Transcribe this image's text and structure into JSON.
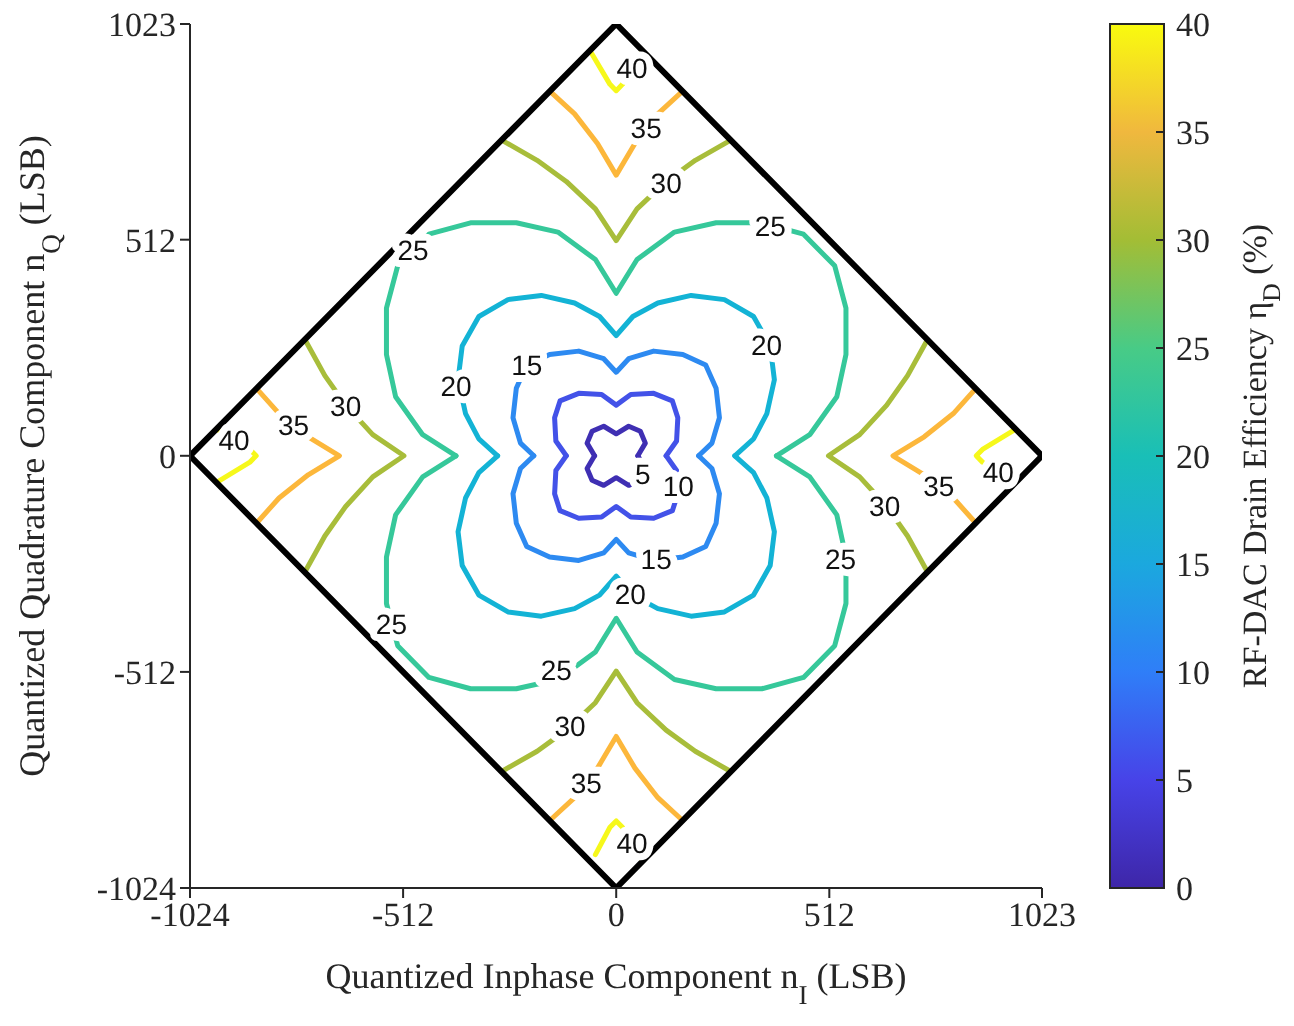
{
  "chart_data": {
    "type": "line",
    "xlabel": "Quantized Inphase Component n$_{I}$ (LSB)",
    "ylabel": "Quantized Quadrature Component n$_{Q}$ (LSB)",
    "clabel": "RF-DAC Drain Efficiency η$_{D}$ (%)",
    "xlim": [
      -1024,
      1023
    ],
    "ylim": [
      -1024,
      1023
    ],
    "xticks": [
      -1024,
      -512,
      0,
      512,
      1023
    ],
    "yticks": [
      -1024,
      -512,
      0,
      512,
      1023
    ],
    "clim": [
      0,
      40
    ],
    "cticks": [
      0,
      5,
      10,
      15,
      20,
      25,
      30,
      35,
      40
    ],
    "series": [
      {
        "color": "#3f2fb3",
        "x": [
          -52,
          -70,
          -58,
          -30,
          0,
          30,
          58,
          70,
          52
        ],
        "values": [
          0,
          30,
          58,
          70,
          52,
          70,
          58,
          30,
          0
        ]
      },
      {
        "color": "#3f2fb3",
        "x": [
          52,
          70,
          58,
          30,
          0,
          -30,
          -58,
          -70,
          -52
        ],
        "values": [
          0,
          -30,
          -58,
          -70,
          -52,
          -70,
          -58,
          -30,
          0
        ]
      },
      {
        "color": "#4352e8",
        "x": [
          -120,
          -145,
          -148,
          -135,
          -90,
          -35,
          0,
          35,
          90,
          135,
          148,
          145,
          120
        ],
        "values": [
          0,
          35,
          90,
          130,
          148,
          145,
          120,
          145,
          148,
          130,
          90,
          35,
          0
        ]
      },
      {
        "color": "#4352e8",
        "x": [
          120,
          145,
          148,
          135,
          90,
          35,
          0,
          -35,
          -90,
          -135,
          -148,
          -145,
          -120
        ],
        "values": [
          0,
          -35,
          -90,
          -130,
          -148,
          -145,
          -120,
          -145,
          -148,
          -130,
          -90,
          -35,
          0
        ]
      },
      {
        "color": "#2d8af1",
        "x": [
          -198,
          -230,
          -248,
          -240,
          -215,
          -160,
          -90,
          -30,
          0,
          30,
          90,
          160,
          215,
          240,
          248,
          230,
          198
        ],
        "values": [
          0,
          30,
          90,
          160,
          215,
          240,
          248,
          230,
          198,
          230,
          248,
          240,
          215,
          160,
          90,
          30,
          0
        ]
      },
      {
        "color": "#2d8af1",
        "x": [
          198,
          230,
          248,
          240,
          215,
          160,
          90,
          30,
          0,
          -30,
          -90,
          -160,
          -215,
          -240,
          -248,
          -230,
          -198
        ],
        "values": [
          0,
          -30,
          -90,
          -160,
          -215,
          -240,
          -248,
          -230,
          -198,
          -230,
          -248,
          -240,
          -215,
          -160,
          -90,
          -30,
          0
        ]
      },
      {
        "color": "#13b3d5",
        "x": [
          -285,
          -330,
          -362,
          -380,
          -370,
          -330,
          -260,
          -180,
          -100,
          -40,
          0,
          40,
          100,
          180,
          260,
          330,
          370,
          380,
          362,
          330,
          285
        ],
        "values": [
          0,
          40,
          100,
          180,
          260,
          330,
          370,
          380,
          362,
          330,
          285,
          330,
          362,
          380,
          370,
          330,
          260,
          180,
          100,
          40,
          0
        ]
      },
      {
        "color": "#13b3d5",
        "x": [
          285,
          330,
          362,
          380,
          370,
          330,
          260,
          180,
          100,
          40,
          0,
          -40,
          -100,
          -180,
          -260,
          -330,
          -370,
          -380,
          -362,
          -330,
          -285
        ],
        "values": [
          0,
          -40,
          -100,
          -180,
          -260,
          -330,
          -370,
          -380,
          -362,
          -330,
          -285,
          -330,
          -362,
          -380,
          -370,
          -330,
          -260,
          -180,
          -100,
          -40,
          0
        ]
      },
      {
        "color": "#36c89a",
        "x": [
          -385,
          -465,
          -530,
          -552,
          -552,
          -525,
          -450,
          -350,
          -240,
          -140,
          -50,
          0,
          50,
          140,
          240,
          350,
          450,
          525,
          552,
          552,
          530,
          465,
          385
        ],
        "values": [
          0,
          50,
          140,
          240,
          350,
          450,
          525,
          552,
          552,
          530,
          465,
          385,
          465,
          530,
          552,
          552,
          525,
          450,
          350,
          240,
          140,
          50,
          0
        ]
      },
      {
        "color": "#36c89a",
        "x": [
          385,
          465,
          530,
          552,
          552,
          525,
          450,
          350,
          240,
          140,
          50,
          0,
          -50,
          -140,
          -240,
          -350,
          -450,
          -525,
          -552,
          -552,
          -530,
          -465,
          -385
        ],
        "values": [
          0,
          -50,
          -140,
          -240,
          -350,
          -450,
          -525,
          -552,
          -552,
          -530,
          -465,
          -385,
          -465,
          -530,
          -552,
          -552,
          -525,
          -450,
          -350,
          -240,
          -140,
          -50,
          0
        ]
      },
      {
        "color": "#a8bd3a",
        "x": [
          -270,
          -190,
          -120,
          -50,
          0,
          50,
          120,
          190,
          270
        ],
        "values": [
          745,
          700,
          650,
          585,
          510,
          585,
          650,
          700,
          745
        ]
      },
      {
        "color": "#a8bd3a",
        "x": [
          745,
          700,
          650,
          585,
          510,
          585,
          650,
          700,
          745
        ],
        "values": [
          270,
          190,
          120,
          50,
          0,
          -50,
          -120,
          -190,
          -270
        ]
      },
      {
        "color": "#a8bd3a",
        "x": [
          -270,
          -190,
          -120,
          -50,
          0,
          50,
          120,
          190,
          270
        ],
        "values": [
          -745,
          -700,
          -650,
          -585,
          -510,
          -585,
          -650,
          -700,
          -745
        ]
      },
      {
        "color": "#a8bd3a",
        "x": [
          -745,
          -700,
          -650,
          -585,
          -510,
          -585,
          -650,
          -700,
          -745
        ],
        "values": [
          270,
          190,
          120,
          50,
          0,
          -50,
          -120,
          -190,
          -270
        ]
      },
      {
        "color": "#fcb73b",
        "x": [
          -155,
          -100,
          -45,
          0,
          45,
          100,
          155
        ],
        "values": [
          860,
          810,
          740,
          665,
          740,
          810,
          860
        ]
      },
      {
        "color": "#fcb73b",
        "x": [
          860,
          810,
          740,
          665,
          740,
          810,
          860
        ],
        "values": [
          155,
          100,
          45,
          0,
          -45,
          -100,
          -155
        ]
      },
      {
        "color": "#fcb73b",
        "x": [
          -155,
          -100,
          -45,
          0,
          45,
          100,
          155
        ],
        "values": [
          -860,
          -810,
          -740,
          -665,
          -740,
          -810,
          -860
        ]
      },
      {
        "color": "#fcb73b",
        "x": [
          -860,
          -810,
          -740,
          -665,
          -740,
          -810,
          -860
        ],
        "values": [
          155,
          100,
          45,
          0,
          -45,
          -100,
          -155
        ]
      },
      {
        "color": "#f6f81b",
        "x": [
          -60,
          -15,
          0,
          15,
          60
        ],
        "values": [
          955,
          880,
          865,
          880,
          955
        ]
      },
      {
        "color": "#f6f81b",
        "x": [
          955,
          880,
          865,
          880,
          955
        ],
        "values": [
          60,
          15,
          0,
          -15,
          -60
        ]
      },
      {
        "color": "#f6f81b",
        "x": [
          -50,
          -15,
          0,
          15,
          60
        ],
        "values": [
          -945,
          -880,
          -865,
          -880,
          -955
        ]
      },
      {
        "color": "#f6f81b",
        "x": [
          -955,
          -880,
          -865,
          -880,
          -955
        ],
        "values": [
          60,
          15,
          0,
          -15,
          -60
        ]
      },
      {
        "color": "#000000",
        "x": [
          -1024,
          0,
          1023
        ],
        "values": [
          0,
          1023,
          0
        ]
      },
      {
        "color": "#000000",
        "x": [
          1023,
          0,
          -1024
        ],
        "values": [
          0,
          -1024,
          0
        ]
      }
    ],
    "annotations": [
      {
        "text": "40",
        "x": 38,
        "y": 918
      },
      {
        "text": "35",
        "x": 72,
        "y": 775
      },
      {
        "text": "30",
        "x": 120,
        "y": 645
      },
      {
        "text": "25",
        "x": 370,
        "y": 545
      },
      {
        "text": "20",
        "x": 361,
        "y": 261
      },
      {
        "text": "15",
        "x": -215,
        "y": 215
      },
      {
        "text": "10",
        "x": 149,
        "y": -71
      },
      {
        "text": "5",
        "x": 64,
        "y": -44
      },
      {
        "text": "25",
        "x": -488,
        "y": 488
      },
      {
        "text": "20",
        "x": -385,
        "y": 166
      },
      {
        "text": "30",
        "x": -650,
        "y": 118
      },
      {
        "text": "35",
        "x": -775,
        "y": 72
      },
      {
        "text": "40",
        "x": -918,
        "y": 38
      },
      {
        "text": "25",
        "x": -540,
        "y": -400
      },
      {
        "text": "25",
        "x": -144,
        "y": -507
      },
      {
        "text": "30",
        "x": -111,
        "y": -640
      },
      {
        "text": "35",
        "x": -72,
        "y": -775
      },
      {
        "text": "40",
        "x": 38,
        "y": -918
      },
      {
        "text": "15",
        "x": 96,
        "y": -246
      },
      {
        "text": "20",
        "x": 34,
        "y": -327
      },
      {
        "text": "25",
        "x": 539,
        "y": -246
      },
      {
        "text": "30",
        "x": 645,
        "y": -119
      },
      {
        "text": "35",
        "x": 775,
        "y": -72
      },
      {
        "text": "40",
        "x": 918,
        "y": -38
      }
    ]
  }
}
